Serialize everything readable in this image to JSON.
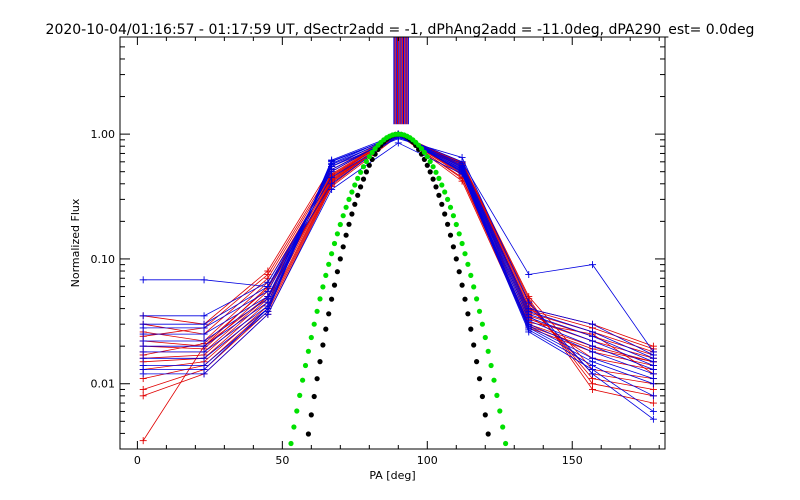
{
  "chart_data": {
    "type": "line",
    "title": "2020-10-04/01:16:57 - 01:17:59 UT, dSectr2add = -1, dPhAng2add = -11.0deg, dPA290_est=  0.0deg",
    "xlabel": "PA [deg]",
    "ylabel": "Normalized Flux",
    "xlim": [
      -6,
      182
    ],
    "ylim": [
      0.003,
      6.0
    ],
    "yscale": "log",
    "x_ticks": [
      0,
      50,
      100,
      150
    ],
    "x_tick_labels": [
      "0",
      "50",
      "100",
      "150"
    ],
    "y_ticks": [
      0.01,
      0.1,
      1.0
    ],
    "y_tick_labels": [
      "0.01",
      "0.10",
      "1.00"
    ],
    "grid": false,
    "legend": "none",
    "colors": {
      "red_series": "#e00000",
      "blue_series": "#0000e0",
      "black_fit": "#000000",
      "green_fit": "#00e000",
      "axes": "#000000"
    },
    "pa_bins": [
      2,
      23,
      45,
      67,
      90,
      112,
      135,
      157,
      178
    ],
    "series_groups": [
      {
        "color": "red",
        "traces": [
          [
            0.035,
            0.03,
            0.08,
            0.55,
            1.0,
            0.42,
            0.028,
            0.018,
            0.014
          ],
          [
            0.03,
            0.025,
            0.07,
            0.5,
            0.98,
            0.45,
            0.03,
            0.02,
            0.015
          ],
          [
            0.026,
            0.022,
            0.065,
            0.48,
            1.0,
            0.48,
            0.033,
            0.022,
            0.016
          ],
          [
            0.022,
            0.02,
            0.06,
            0.46,
            0.99,
            0.5,
            0.035,
            0.024,
            0.017
          ],
          [
            0.02,
            0.019,
            0.055,
            0.45,
            1.0,
            0.52,
            0.037,
            0.026,
            0.018
          ],
          [
            0.018,
            0.018,
            0.05,
            0.44,
            0.97,
            0.54,
            0.039,
            0.028,
            0.019
          ],
          [
            0.016,
            0.017,
            0.048,
            0.43,
            1.0,
            0.55,
            0.04,
            0.03,
            0.02
          ],
          [
            0.015,
            0.016,
            0.045,
            0.42,
            0.98,
            0.56,
            0.042,
            0.012,
            0.01
          ],
          [
            0.013,
            0.015,
            0.042,
            0.41,
            1.0,
            0.57,
            0.044,
            0.011,
            0.009
          ],
          [
            0.011,
            0.014,
            0.04,
            0.4,
            0.99,
            0.58,
            0.046,
            0.01,
            0.008
          ],
          [
            0.009,
            0.013,
            0.038,
            0.39,
            1.0,
            0.59,
            0.048,
            0.009,
            0.007
          ],
          [
            0.008,
            0.012,
            0.036,
            0.38,
            0.97,
            0.6,
            0.05,
            0.013,
            0.011
          ],
          [
            0.0035,
            0.02,
            0.05,
            0.42,
            1.0,
            0.5,
            0.035,
            0.016,
            0.013
          ],
          [
            0.017,
            0.021,
            0.058,
            0.47,
            0.99,
            0.47,
            0.031,
            0.025,
            0.012
          ],
          [
            0.024,
            0.028,
            0.075,
            0.52,
            1.0,
            0.44,
            0.029,
            0.019,
            0.015
          ]
        ]
      },
      {
        "color": "blue",
        "traces": [
          [
            0.068,
            0.068,
            0.06,
            0.4,
            0.98,
            0.6,
            0.075,
            0.09,
            0.018
          ],
          [
            0.035,
            0.035,
            0.065,
            0.45,
            0.95,
            0.58,
            0.04,
            0.03,
            0.017
          ],
          [
            0.03,
            0.03,
            0.06,
            0.5,
            1.0,
            0.56,
            0.038,
            0.026,
            0.016
          ],
          [
            0.028,
            0.028,
            0.055,
            0.52,
            0.97,
            0.55,
            0.036,
            0.024,
            0.015
          ],
          [
            0.025,
            0.025,
            0.05,
            0.55,
            0.99,
            0.54,
            0.034,
            0.022,
            0.014
          ],
          [
            0.022,
            0.022,
            0.048,
            0.57,
            0.96,
            0.53,
            0.032,
            0.02,
            0.013
          ],
          [
            0.02,
            0.02,
            0.045,
            0.58,
            1.0,
            0.52,
            0.03,
            0.018,
            0.012
          ],
          [
            0.018,
            0.018,
            0.042,
            0.6,
            0.98,
            0.51,
            0.029,
            0.016,
            0.011
          ],
          [
            0.016,
            0.016,
            0.04,
            0.61,
            0.97,
            0.5,
            0.028,
            0.015,
            0.01
          ],
          [
            0.014,
            0.014,
            0.038,
            0.62,
            1.0,
            0.49,
            0.027,
            0.014,
            0.008
          ],
          [
            0.012,
            0.012,
            0.036,
            0.36,
            0.85,
            0.48,
            0.026,
            0.013,
            0.006
          ],
          [
            0.013,
            0.013,
            0.04,
            0.55,
            0.92,
            0.65,
            0.045,
            0.012,
            0.0052
          ]
        ]
      }
    ],
    "fit_curves": [
      {
        "color": "black",
        "center": 90,
        "log10_width": 20.0,
        "x_range": [
          29,
          155
        ]
      },
      {
        "color": "green",
        "center": 90,
        "log10_width": 23.5,
        "x_range": [
          20,
          158
        ]
      }
    ],
    "bar_overlay": {
      "x_range": [
        88.5,
        93.5
      ],
      "y_bottom": 1.2,
      "colors": [
        "#0000e0",
        "#e00000"
      ]
    }
  }
}
